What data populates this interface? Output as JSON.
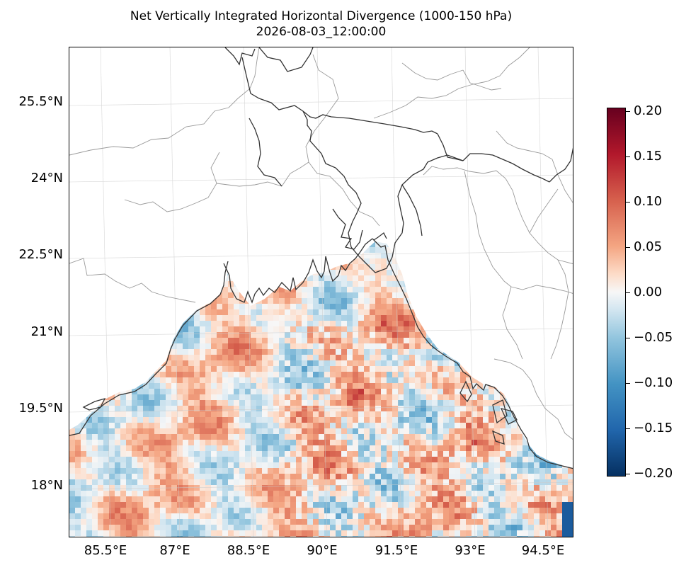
{
  "title": {
    "line1": "Net Vertically Integrated Horizontal Divergence (1000-150 hPa)",
    "line2": "2026-08-03_12:00:00"
  },
  "map": {
    "lon_range": [
      84.6,
      95.0
    ],
    "lat_range": [
      17.0,
      26.6
    ],
    "grid": true,
    "colormap": "RdBu_r",
    "land_color": "#ffffff",
    "coastline_color": "#333333",
    "border_color": "#999999",
    "lat_labels": [
      "25.5°N",
      "24°N",
      "22.5°N",
      "21°N",
      "19.5°N",
      "18°N"
    ],
    "lon_labels": [
      "85.5°E",
      "87°E",
      "88.5°E",
      "90°E",
      "91.5°E",
      "93°E",
      "94.5°E"
    ]
  },
  "colorbar": {
    "min": -0.2,
    "max": 0.2,
    "ticks": [
      "0.20",
      "0.15",
      "0.10",
      "0.05",
      "0.00",
      "−0.05",
      "−0.10",
      "−0.15",
      "−0.20"
    ],
    "colors": [
      "#67001f",
      "#b2182b",
      "#d6604d",
      "#f4a582",
      "#fddbc7",
      "#f7f7f7",
      "#d1e5f0",
      "#92c5de",
      "#4393c3",
      "#2166ac",
      "#053061"
    ]
  }
}
